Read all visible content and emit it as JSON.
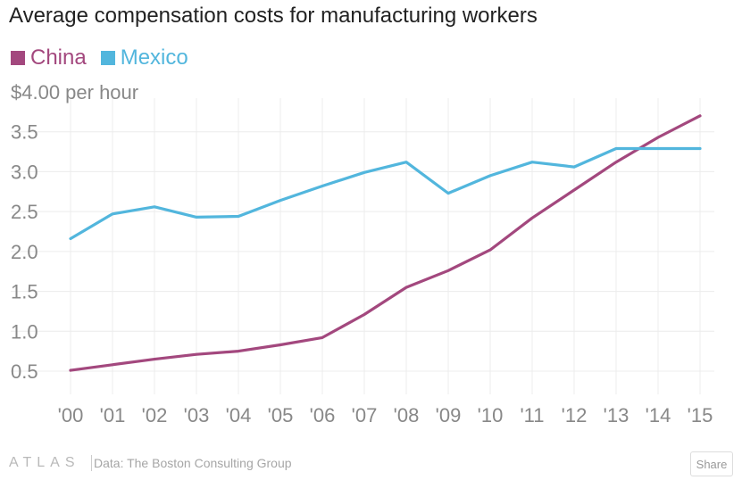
{
  "chart_data": {
    "type": "line",
    "title": "Average compensation costs for manufacturing workers",
    "ylabel": "$4.00 per hour",
    "ylim": [
      0.25,
      4.0
    ],
    "y_ticks": [
      {
        "value": 4.0,
        "label": "$4.00 per hour"
      },
      {
        "value": 3.5,
        "label": "3.5"
      },
      {
        "value": 3.0,
        "label": "3.0"
      },
      {
        "value": 2.5,
        "label": "2.5"
      },
      {
        "value": 2.0,
        "label": "2.0"
      },
      {
        "value": 1.5,
        "label": "1.5"
      },
      {
        "value": 1.0,
        "label": "1.0"
      },
      {
        "value": 0.5,
        "label": "0.5"
      }
    ],
    "categories": [
      "'00",
      "'01",
      "'02",
      "'03",
      "'04",
      "'05",
      "'06",
      "'07",
      "'08",
      "'09",
      "'10",
      "'11",
      "'12",
      "'13",
      "'14",
      "'15"
    ],
    "series": [
      {
        "name": "China",
        "color": "#a3487e",
        "values": [
          0.51,
          0.58,
          0.65,
          0.71,
          0.75,
          0.83,
          0.92,
          1.21,
          1.55,
          1.76,
          2.02,
          2.42,
          2.77,
          3.12,
          3.43,
          3.7
        ]
      },
      {
        "name": "Mexico",
        "color": "#52b6dd",
        "values": [
          2.16,
          2.47,
          2.56,
          2.43,
          2.44,
          2.64,
          2.82,
          2.99,
          3.12,
          2.73,
          2.95,
          3.12,
          3.06,
          3.29,
          3.29,
          3.29
        ]
      }
    ],
    "grid": true,
    "legend": "top-left"
  },
  "footer": {
    "logo": "ATLAS",
    "source": "Data: The Boston Consulting Group",
    "share_label": "Share"
  }
}
